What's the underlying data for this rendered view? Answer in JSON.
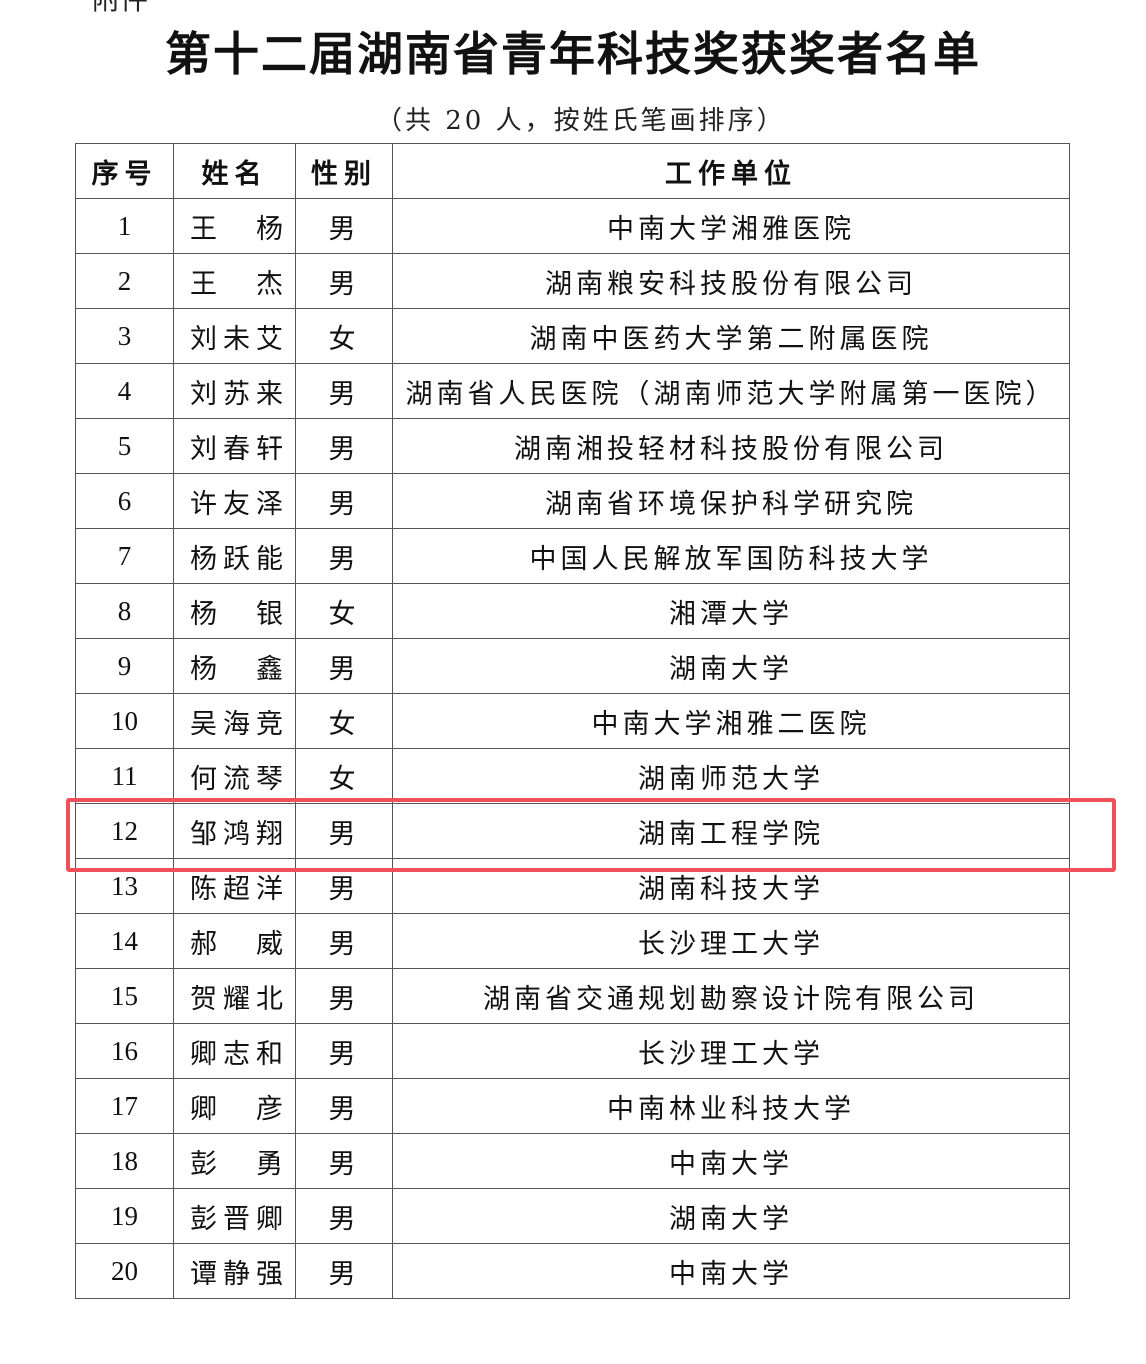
{
  "header_cut": "附件",
  "title": "第十二届湖南省青年科技奖获奖者名单",
  "subtitle": "（共 20 人，按姓氏笔画排序）",
  "columns": [
    "序号",
    "姓名",
    "性别",
    "工作单位"
  ],
  "rows": [
    [
      "1",
      "王　杨",
      "男",
      "中南大学湘雅医院"
    ],
    [
      "2",
      "王　杰",
      "男",
      "湖南粮安科技股份有限公司"
    ],
    [
      "3",
      "刘未艾",
      "女",
      "湖南中医药大学第二附属医院"
    ],
    [
      "4",
      "刘苏来",
      "男",
      "湖南省人民医院（湖南师范大学附属第一医院）"
    ],
    [
      "5",
      "刘春轩",
      "男",
      "湖南湘投轻材科技股份有限公司"
    ],
    [
      "6",
      "许友泽",
      "男",
      "湖南省环境保护科学研究院"
    ],
    [
      "7",
      "杨跃能",
      "男",
      "中国人民解放军国防科技大学"
    ],
    [
      "8",
      "杨　银",
      "女",
      "湘潭大学"
    ],
    [
      "9",
      "杨　鑫",
      "男",
      "湖南大学"
    ],
    [
      "10",
      "吴海竞",
      "女",
      "中南大学湘雅二医院"
    ],
    [
      "11",
      "何流琴",
      "女",
      "湖南师范大学"
    ],
    [
      "12",
      "邹鸿翔",
      "男",
      "湖南工程学院"
    ],
    [
      "13",
      "陈超洋",
      "男",
      "湖南科技大学"
    ],
    [
      "14",
      "郝　威",
      "男",
      "长沙理工大学"
    ],
    [
      "15",
      "贺耀北",
      "男",
      "湖南省交通规划勘察设计院有限公司"
    ],
    [
      "16",
      "卿志和",
      "男",
      "长沙理工大学"
    ],
    [
      "17",
      "卿　彦",
      "男",
      "中南林业科技大学"
    ],
    [
      "18",
      "彭　勇",
      "男",
      "中南大学"
    ],
    [
      "19",
      "彭晋卿",
      "男",
      "湖南大学"
    ],
    [
      "20",
      "谭静强",
      "男",
      "中南大学"
    ]
  ],
  "highlighted_row": 12,
  "highlight_color": "#f0505a"
}
